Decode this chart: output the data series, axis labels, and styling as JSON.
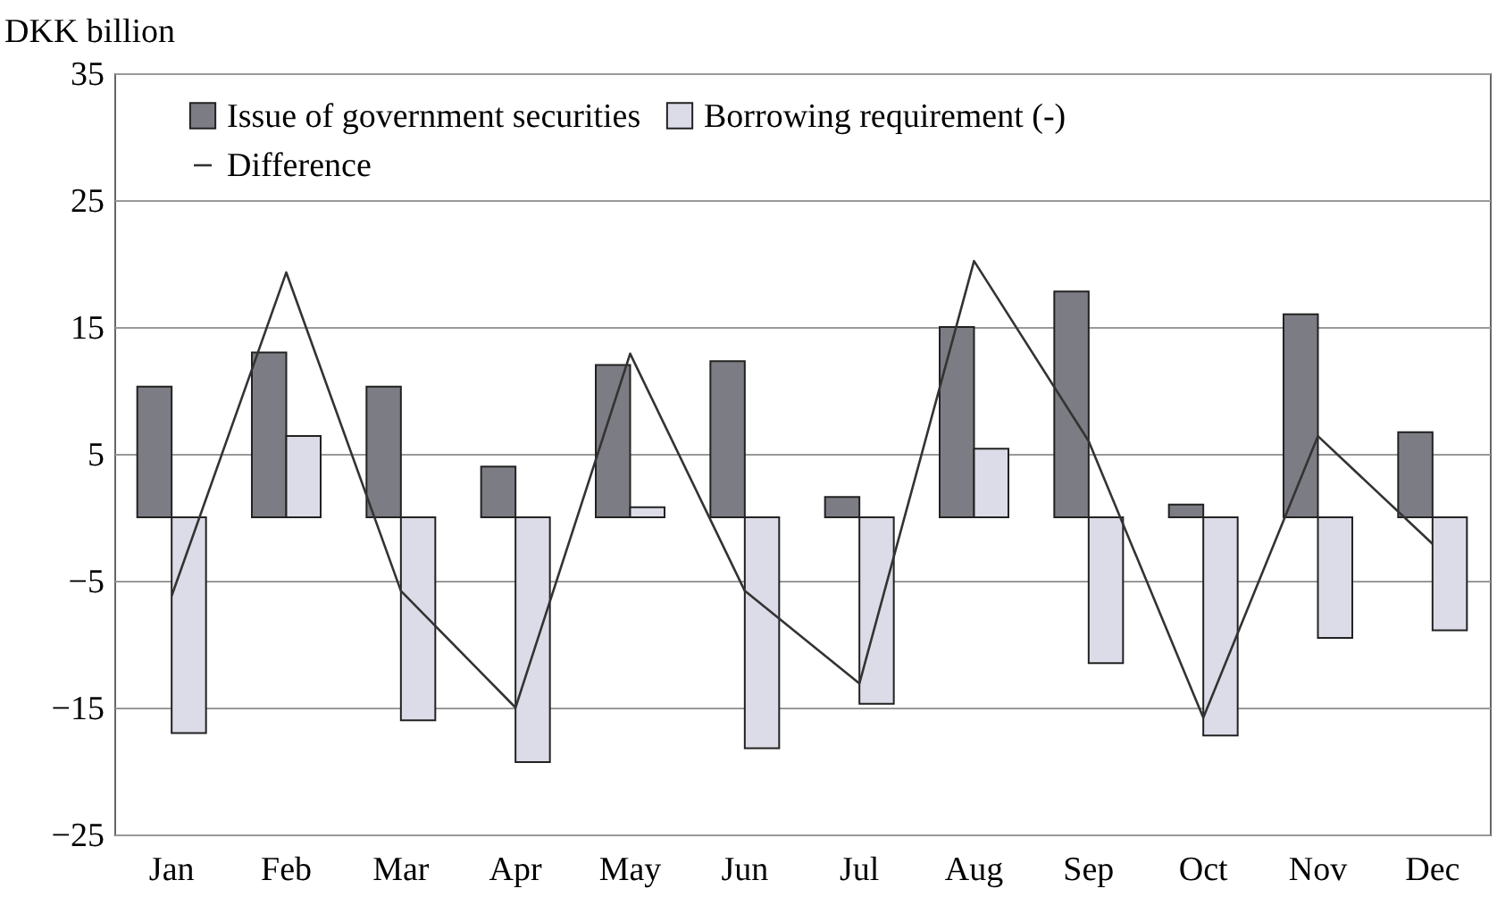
{
  "chart_data": {
    "type": "bar",
    "ylabel": "DKK billion",
    "categories": [
      "Jan",
      "Feb",
      "Mar",
      "Apr",
      "May",
      "Jun",
      "Jul",
      "Aug",
      "Sep",
      "Oct",
      "Nov",
      "Dec"
    ],
    "series": [
      {
        "name": "Issue of government securities",
        "color": "#7c7c84",
        "values": [
          10.3,
          13.0,
          10.3,
          4.0,
          12.0,
          12.3,
          1.6,
          15.0,
          17.8,
          1.0,
          16.0,
          6.7
        ]
      },
      {
        "name": "Borrowing requirement (-)",
        "color": "#dcdce8",
        "values": [
          -17.0,
          6.4,
          -16.0,
          -19.3,
          0.8,
          -18.2,
          -14.7,
          5.4,
          -11.5,
          -17.2,
          -9.5,
          -8.9
        ]
      },
      {
        "name": "Difference",
        "type": "line",
        "color": "#333333",
        "values": [
          -6.2,
          19.3,
          -5.8,
          -15.0,
          12.9,
          -5.8,
          -13.1,
          20.2,
          6.0,
          -15.8,
          6.4,
          -2.1
        ]
      }
    ],
    "ylim": [
      -25,
      35
    ],
    "yticks": [
      -25,
      -15,
      -5,
      5,
      15,
      25,
      35
    ],
    "grid": "y",
    "legend": "top",
    "marker": "none",
    "line_style": "solid"
  }
}
